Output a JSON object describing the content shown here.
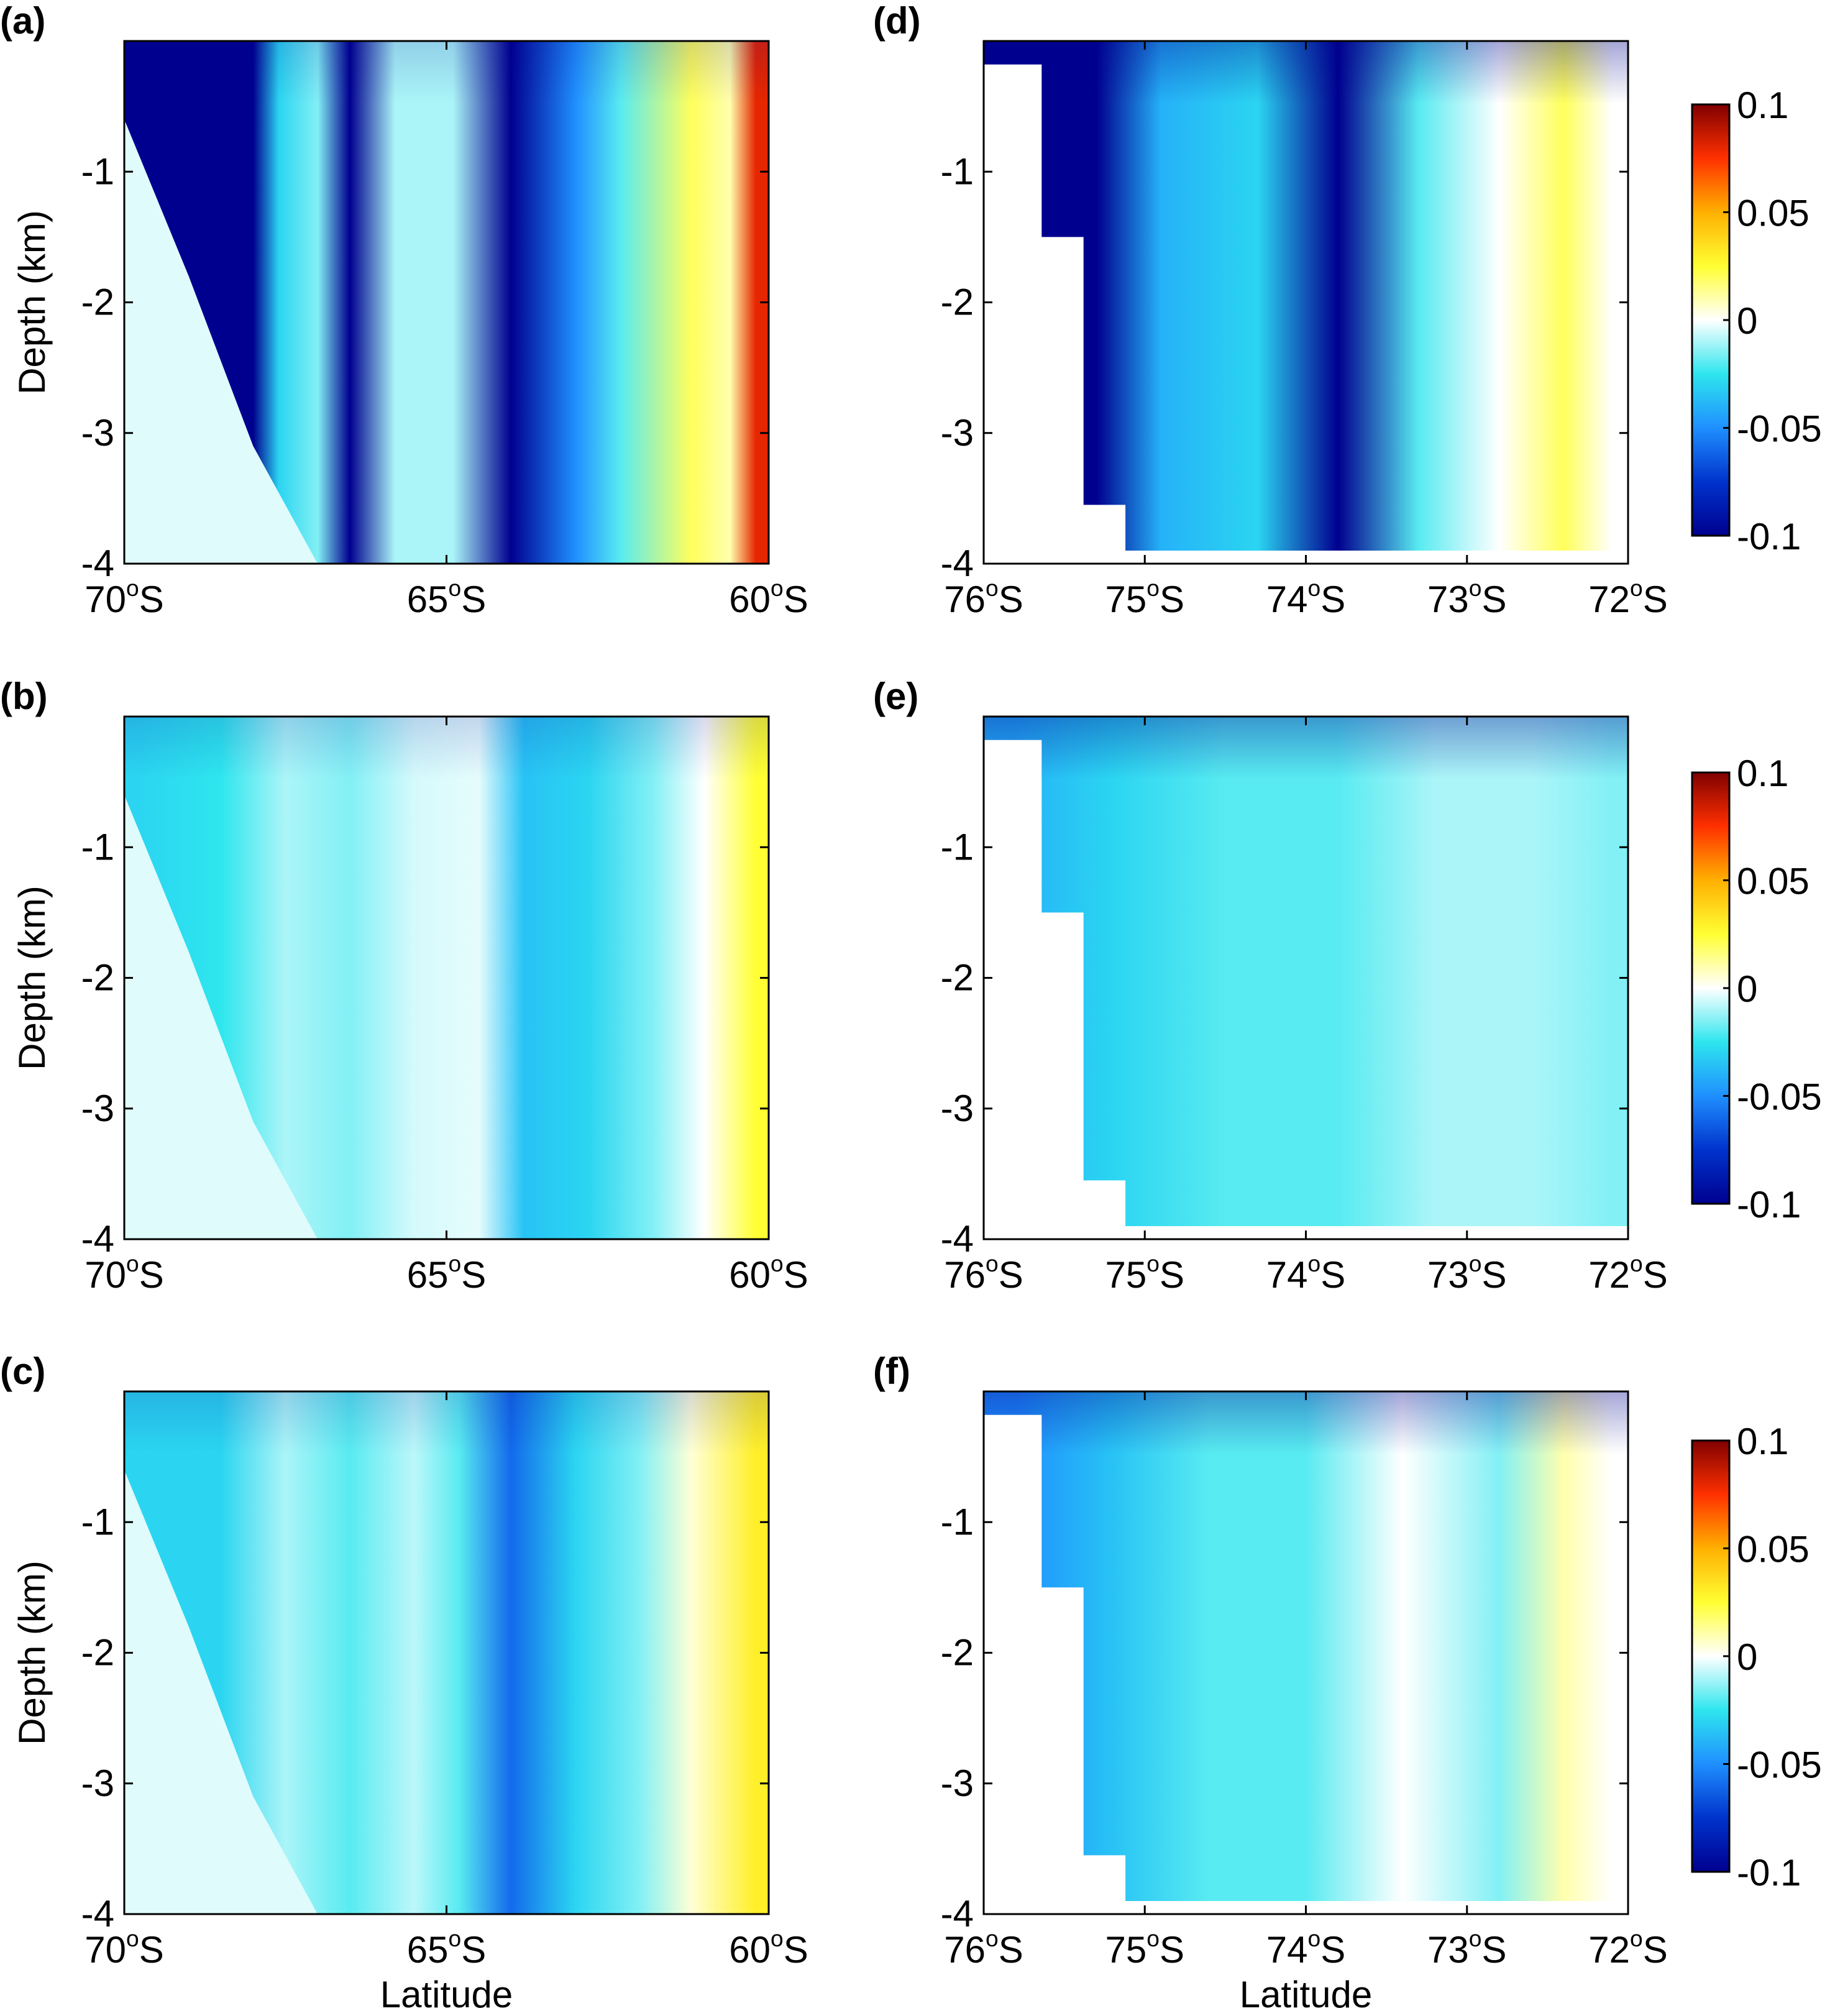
{
  "figure": {
    "colorbar_ticks": [
      "0.1",
      "0.05",
      "0",
      "-0.05",
      "-0.1"
    ],
    "colorbar_min": -0.1,
    "colorbar_max": 0.1,
    "colormap": "jet-white-centered",
    "colormap_stops": [
      "#00008f",
      "#0033cc",
      "#1f8fff",
      "#2ee6ee",
      "#ffffff",
      "#ffff33",
      "#ffb000",
      "#ff3000",
      "#800000"
    ]
  },
  "chart_data": [
    {
      "type": "heatmap",
      "panel_label": "(a)",
      "ylabel": "Depth (km)",
      "xlabel": "",
      "x_ticks": [
        "70°S",
        "65°S",
        "60°S"
      ],
      "x_tick_values": [
        -70,
        -65,
        -60
      ],
      "y_ticks": [
        "-1",
        "-2",
        "-3",
        "-4"
      ],
      "y_tick_values": [
        -1,
        -2,
        -3,
        -4
      ],
      "xlim": [
        -70,
        -60
      ],
      "ylim": [
        -4,
        0
      ],
      "bathymetry_depth_km": [
        -0.6,
        -1.8,
        -3.1,
        -4.0,
        -4.0,
        -4.0,
        -4.0,
        -4.0,
        -4.0,
        -4.0,
        -4.0
      ],
      "bands": [
        {
          "lat": -69.8,
          "value": -0.1
        },
        {
          "lat": -68.0,
          "value": -0.1
        },
        {
          "lat": -67.6,
          "value": -0.03
        },
        {
          "lat": -67.0,
          "value": -0.015
        },
        {
          "lat": -66.5,
          "value": -0.1
        },
        {
          "lat": -65.8,
          "value": -0.01
        },
        {
          "lat": -64.9,
          "value": -0.01
        },
        {
          "lat": -64.0,
          "value": -0.1
        },
        {
          "lat": -63.0,
          "value": -0.05
        },
        {
          "lat": -62.3,
          "value": -0.02
        },
        {
          "lat": -61.2,
          "value": 0.02
        },
        {
          "lat": -60.6,
          "value": 0.01
        },
        {
          "lat": -60.2,
          "value": 0.08
        }
      ]
    },
    {
      "type": "heatmap",
      "panel_label": "(b)",
      "ylabel": "Depth (km)",
      "xlabel": "",
      "x_ticks": [
        "70°S",
        "65°S",
        "60°S"
      ],
      "x_tick_values": [
        -70,
        -65,
        -60
      ],
      "y_ticks": [
        "-1",
        "-2",
        "-3",
        "-4"
      ],
      "y_tick_values": [
        -1,
        -2,
        -3,
        -4
      ],
      "xlim": [
        -70,
        -60
      ],
      "ylim": [
        -4,
        0
      ],
      "bathymetry_depth_km": [
        -0.6,
        -1.8,
        -3.1,
        -4.0,
        -4.0,
        -4.0,
        -4.0,
        -4.0,
        -4.0,
        -4.0,
        -4.0
      ],
      "bands": [
        {
          "lat": -69.8,
          "value": -0.03
        },
        {
          "lat": -68.5,
          "value": -0.025
        },
        {
          "lat": -67.5,
          "value": -0.01
        },
        {
          "lat": -66.5,
          "value": -0.015
        },
        {
          "lat": -65.5,
          "value": -0.005
        },
        {
          "lat": -64.5,
          "value": -0.003
        },
        {
          "lat": -63.8,
          "value": -0.035
        },
        {
          "lat": -62.8,
          "value": -0.03
        },
        {
          "lat": -61.8,
          "value": -0.015
        },
        {
          "lat": -61.0,
          "value": 0.0
        },
        {
          "lat": -60.2,
          "value": 0.025
        }
      ]
    },
    {
      "type": "heatmap",
      "panel_label": "(c)",
      "ylabel": "Depth (km)",
      "xlabel": "Latitude",
      "x_ticks": [
        "70°S",
        "65°S",
        "60°S"
      ],
      "x_tick_values": [
        -70,
        -65,
        -60
      ],
      "y_ticks": [
        "-1",
        "-2",
        "-3",
        "-4"
      ],
      "y_tick_values": [
        -1,
        -2,
        -3,
        -4
      ],
      "xlim": [
        -70,
        -60
      ],
      "ylim": [
        -4,
        0
      ],
      "bathymetry_depth_km": [
        -0.6,
        -1.8,
        -3.1,
        -4.0,
        -4.0,
        -4.0,
        -4.0,
        -4.0,
        -4.0,
        -4.0,
        -4.0
      ],
      "bands": [
        {
          "lat": -69.8,
          "value": -0.03
        },
        {
          "lat": -68.5,
          "value": -0.03
        },
        {
          "lat": -67.5,
          "value": -0.01
        },
        {
          "lat": -66.5,
          "value": -0.02
        },
        {
          "lat": -65.5,
          "value": -0.008
        },
        {
          "lat": -64.8,
          "value": -0.02
        },
        {
          "lat": -64.0,
          "value": -0.06
        },
        {
          "lat": -63.0,
          "value": -0.03
        },
        {
          "lat": -62.0,
          "value": -0.015
        },
        {
          "lat": -61.2,
          "value": 0.005
        },
        {
          "lat": -60.2,
          "value": 0.03
        }
      ]
    },
    {
      "type": "heatmap",
      "panel_label": "(d)",
      "ylabel": "",
      "xlabel": "",
      "x_ticks": [
        "76°S",
        "75°S",
        "74°S",
        "73°S",
        "72°S"
      ],
      "x_tick_values": [
        -76,
        -75,
        -74,
        -73,
        -72
      ],
      "y_ticks": [
        "-1",
        "-2",
        "-3",
        "-4"
      ],
      "y_tick_values": [
        -1,
        -2,
        -3,
        -4
      ],
      "xlim": [
        -76,
        -72
      ],
      "ylim": [
        -4,
        0
      ],
      "bathymetry_steps": [
        {
          "lat_start": -76.0,
          "lat_end": -75.64,
          "depth": -0.18
        },
        {
          "lat_start": -75.64,
          "lat_end": -75.38,
          "depth": -1.5
        },
        {
          "lat_start": -75.38,
          "lat_end": -75.12,
          "depth": -3.55
        },
        {
          "lat_start": -75.12,
          "lat_end": -72.35,
          "depth": -3.9
        },
        {
          "lat_start": -72.35,
          "lat_end": -72.0,
          "depth": -3.9
        }
      ],
      "bands": [
        {
          "lat": -75.8,
          "value": -0.1
        },
        {
          "lat": -75.3,
          "value": -0.1
        },
        {
          "lat": -74.9,
          "value": -0.04
        },
        {
          "lat": -74.3,
          "value": -0.03
        },
        {
          "lat": -73.8,
          "value": -0.1
        },
        {
          "lat": -73.3,
          "value": -0.02
        },
        {
          "lat": -72.8,
          "value": 0.0
        },
        {
          "lat": -72.4,
          "value": 0.02
        },
        {
          "lat": -72.1,
          "value": 0.0
        }
      ]
    },
    {
      "type": "heatmap",
      "panel_label": "(e)",
      "ylabel": "",
      "xlabel": "",
      "x_ticks": [
        "76°S",
        "75°S",
        "74°S",
        "73°S",
        "72°S"
      ],
      "x_tick_values": [
        -76,
        -75,
        -74,
        -73,
        -72
      ],
      "y_ticks": [
        "-1",
        "-2",
        "-3",
        "-4"
      ],
      "y_tick_values": [
        -1,
        -2,
        -3,
        -4
      ],
      "xlim": [
        -76,
        -72
      ],
      "ylim": [
        -4,
        0
      ],
      "bathymetry_steps": [
        {
          "lat_start": -76.0,
          "lat_end": -75.64,
          "depth": -0.18
        },
        {
          "lat_start": -75.64,
          "lat_end": -75.38,
          "depth": -1.5
        },
        {
          "lat_start": -75.38,
          "lat_end": -75.12,
          "depth": -3.55
        },
        {
          "lat_start": -75.12,
          "lat_end": -72.35,
          "depth": -3.9
        },
        {
          "lat_start": -72.35,
          "lat_end": -72.0,
          "depth": -3.9
        }
      ],
      "bands": [
        {
          "lat": -75.8,
          "value": -0.04
        },
        {
          "lat": -75.2,
          "value": -0.03
        },
        {
          "lat": -74.5,
          "value": -0.02
        },
        {
          "lat": -73.8,
          "value": -0.02
        },
        {
          "lat": -73.2,
          "value": -0.01
        },
        {
          "lat": -72.6,
          "value": -0.01
        },
        {
          "lat": -72.1,
          "value": -0.015
        }
      ]
    },
    {
      "type": "heatmap",
      "panel_label": "(f)",
      "ylabel": "",
      "xlabel": "Latitude",
      "x_ticks": [
        "76°S",
        "75°S",
        "74°S",
        "73°S",
        "72°S"
      ],
      "x_tick_values": [
        -76,
        -75,
        -74,
        -73,
        -72
      ],
      "y_ticks": [
        "-1",
        "-2",
        "-3",
        "-4"
      ],
      "y_tick_values": [
        -1,
        -2,
        -3,
        -4
      ],
      "xlim": [
        -76,
        -72
      ],
      "ylim": [
        -4,
        0
      ],
      "bathymetry_steps": [
        {
          "lat_start": -76.0,
          "lat_end": -75.64,
          "depth": -0.18
        },
        {
          "lat_start": -75.64,
          "lat_end": -75.38,
          "depth": -1.5
        },
        {
          "lat_start": -75.38,
          "lat_end": -75.12,
          "depth": -3.55
        },
        {
          "lat_start": -75.12,
          "lat_end": -72.35,
          "depth": -3.9
        },
        {
          "lat_start": -72.35,
          "lat_end": -72.0,
          "depth": -3.9
        }
      ],
      "bands": [
        {
          "lat": -75.8,
          "value": -0.05
        },
        {
          "lat": -75.2,
          "value": -0.035
        },
        {
          "lat": -74.6,
          "value": -0.02
        },
        {
          "lat": -74.0,
          "value": -0.02
        },
        {
          "lat": -73.4,
          "value": 0.0
        },
        {
          "lat": -72.8,
          "value": -0.015
        },
        {
          "lat": -72.4,
          "value": 0.01
        },
        {
          "lat": -72.1,
          "value": 0.0
        }
      ]
    }
  ]
}
